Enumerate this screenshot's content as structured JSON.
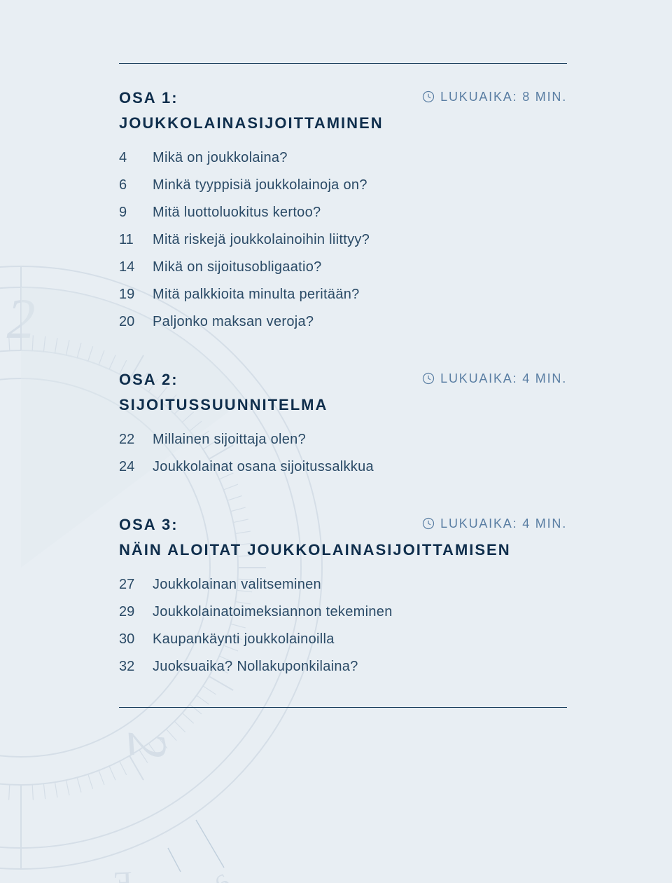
{
  "colors": {
    "page_bg": "#e8eef3",
    "rule": "#1a3e5c",
    "heading": "#0f2e4c",
    "body": "#2a4a66",
    "readtime": "#5a7ea3",
    "compass_line": "#c4d1dd",
    "compass_line_dark": "#9fb5c9"
  },
  "sections": [
    {
      "title": "OSA 1:",
      "readtime": "LUKUAIKA: 8 MIN.",
      "subtitle": "JOUKKOLAINASIJOITTAMINEN",
      "items": [
        {
          "page": "4",
          "label": "Mikä on joukkolaina?"
        },
        {
          "page": "6",
          "label": "Minkä tyyppisiä joukkolainoja on?"
        },
        {
          "page": "9",
          "label": "Mitä luottoluokitus kertoo?"
        },
        {
          "page": "11",
          "label": "Mitä riskejä joukkolainoihin liittyy?"
        },
        {
          "page": "14",
          "label": "Mikä on sijoitusobligaatio?"
        },
        {
          "page": "19",
          "label": "Mitä palkkioita minulta peritään?"
        },
        {
          "page": "20",
          "label": "Paljonko maksan veroja?"
        }
      ]
    },
    {
      "title": "OSA 2:",
      "readtime": "LUKUAIKA: 4 MIN.",
      "subtitle": "SIJOITUSSUUNNITELMA",
      "items": [
        {
          "page": "22",
          "label": "Millainen sijoittaja olen?"
        },
        {
          "page": "24",
          "label": "Joukkolainat osana sijoitussalkkua"
        }
      ]
    },
    {
      "title": "OSA 3:",
      "readtime": "LUKUAIKA: 4 MIN.",
      "subtitle": "NÄIN ALOITAT JOUKKOLAINASIJOITTAMISEN",
      "items": [
        {
          "page": "27",
          "label": "Joukkolainan valitseminen"
        },
        {
          "page": "29",
          "label": "Joukkolainatoimeksiannon tekeminen"
        },
        {
          "page": "30",
          "label": "Kaupankäynti joukkolainoilla"
        },
        {
          "page": "32",
          "label": "Juoksuaika? Nollakuponkilaina?"
        }
      ]
    }
  ]
}
